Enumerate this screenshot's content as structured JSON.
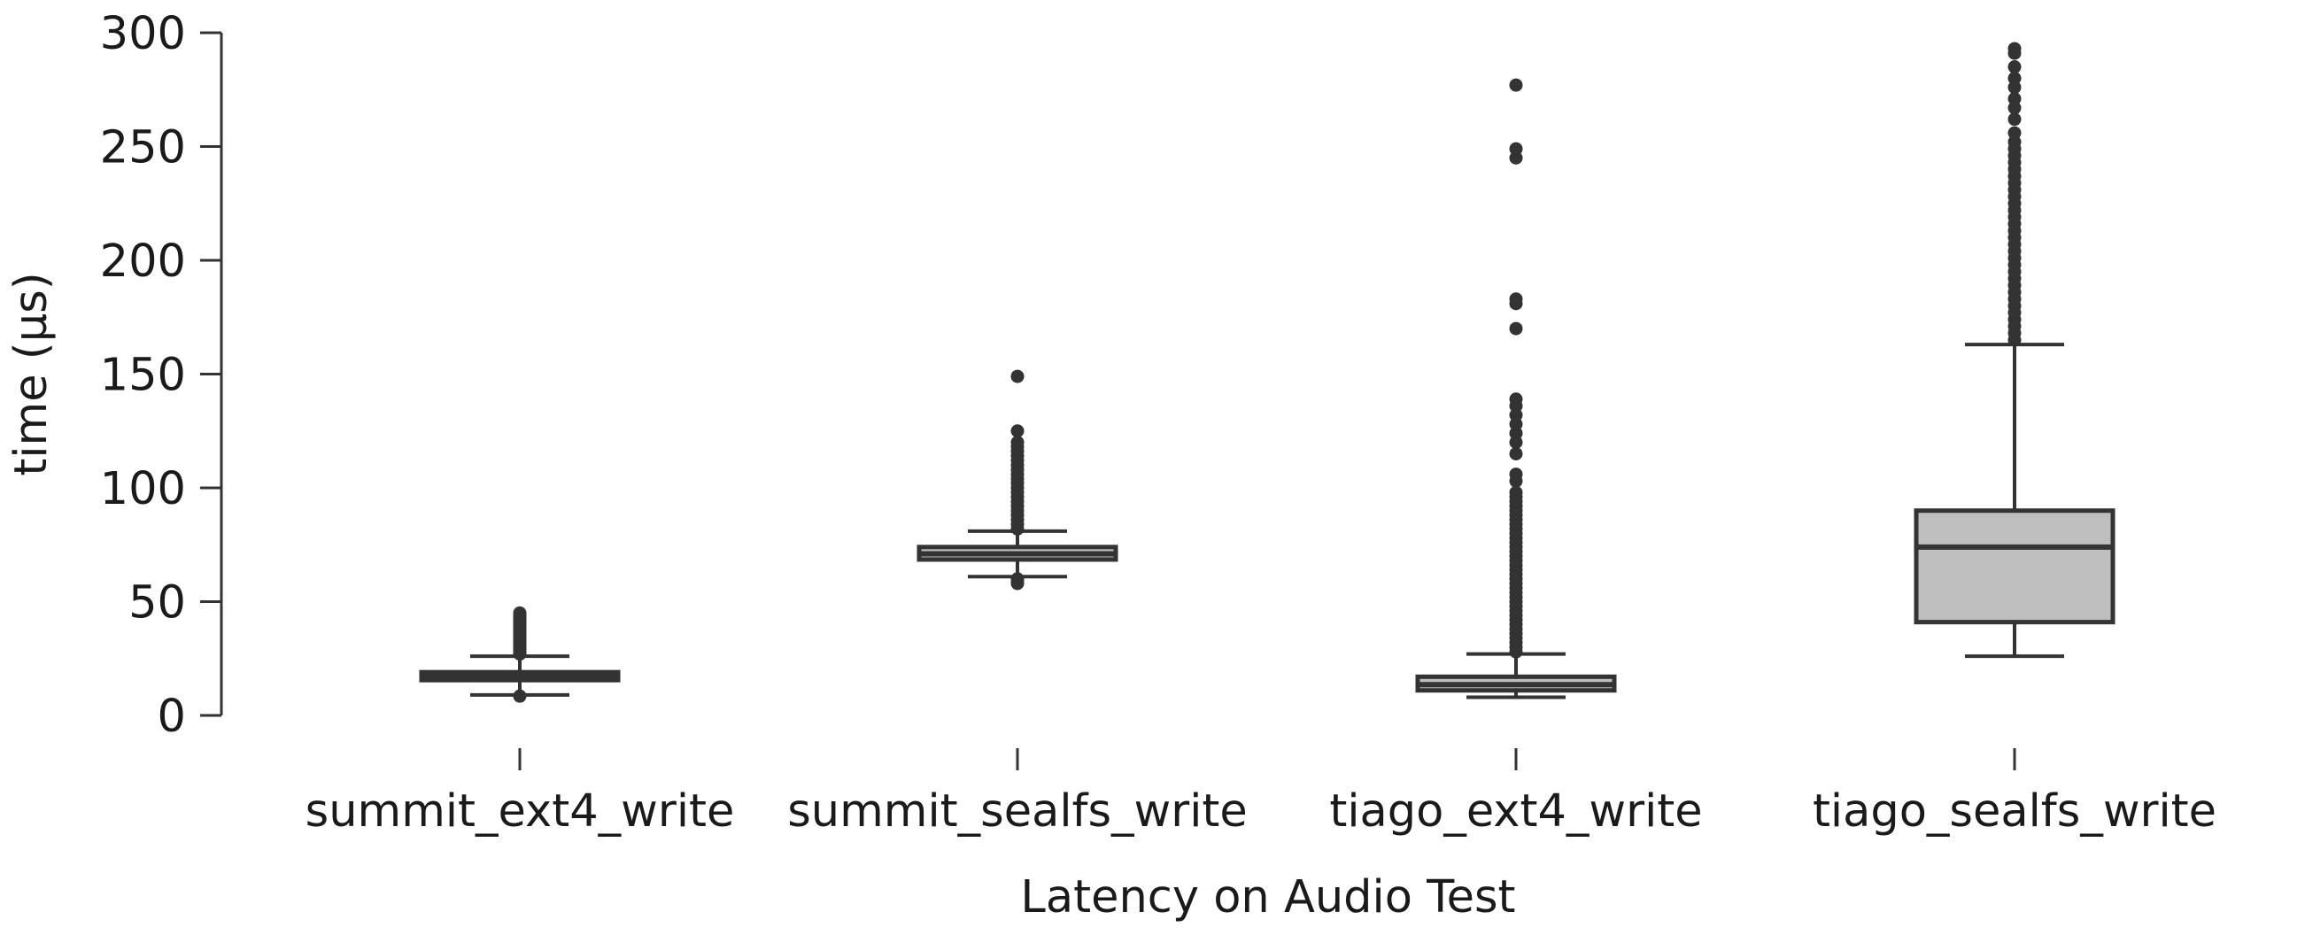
{
  "chart_data": {
    "type": "box",
    "xlabel": "Latency on Audio Test",
    "ylabel": "time (µs)",
    "ylim": [
      0,
      300
    ],
    "yticks": [
      0,
      50,
      100,
      150,
      200,
      250,
      300
    ],
    "ytick_labels": [
      "0",
      "50",
      "100",
      "150",
      "200",
      "250",
      "300"
    ],
    "categories": [
      "summit_ext4_write",
      "summit_sealfs_write",
      "tiago_ext4_write",
      "tiago_sealfs_write"
    ],
    "box_color": "#bebebe",
    "line_color": "#333333",
    "grid": false,
    "legend": false,
    "boxes": [
      {
        "name": "summit_ext4_write",
        "whisker_low": 9,
        "q1": 15.5,
        "median": 17,
        "q3": 19,
        "whisker_high": 26,
        "outliers": [
          8.5,
          27,
          28,
          29,
          30,
          31,
          32,
          33,
          34,
          35,
          36,
          37,
          38,
          39,
          40,
          41,
          42,
          43,
          44,
          45
        ]
      },
      {
        "name": "summit_sealfs_write",
        "whisker_low": 61,
        "q1": 68.5,
        "median": 71,
        "q3": 74,
        "whisker_high": 81,
        "outliers": [
          58,
          59,
          60,
          82,
          84,
          86,
          88,
          90,
          92,
          94,
          96,
          98,
          100,
          102,
          104,
          106,
          108,
          110,
          112,
          114,
          116,
          118,
          120,
          125,
          149
        ]
      },
      {
        "name": "tiago_ext4_write",
        "whisker_low": 8,
        "q1": 11,
        "median": 13.5,
        "q3": 17,
        "whisker_high": 27,
        "outliers": [
          28,
          30,
          32,
          34,
          36,
          38,
          40,
          42,
          44,
          46,
          48,
          50,
          52,
          54,
          56,
          58,
          60,
          62,
          64,
          66,
          68,
          70,
          72,
          74,
          76,
          78,
          80,
          82,
          84,
          86,
          88,
          90,
          92,
          94,
          96,
          98,
          103,
          106,
          115,
          120,
          124,
          128,
          132,
          136,
          139,
          170,
          181,
          183,
          245,
          249,
          277
        ]
      },
      {
        "name": "tiago_sealfs_write",
        "whisker_low": 26,
        "q1": 41,
        "median": 74,
        "q3": 90,
        "whisker_high": 163,
        "outliers": [
          165,
          168,
          171,
          174,
          177,
          180,
          183,
          186,
          189,
          192,
          195,
          198,
          201,
          204,
          207,
          210,
          213,
          216,
          219,
          222,
          225,
          228,
          231,
          234,
          237,
          240,
          243,
          246,
          249,
          252,
          256,
          262,
          267,
          271,
          276,
          280,
          285,
          291,
          293
        ]
      }
    ]
  }
}
